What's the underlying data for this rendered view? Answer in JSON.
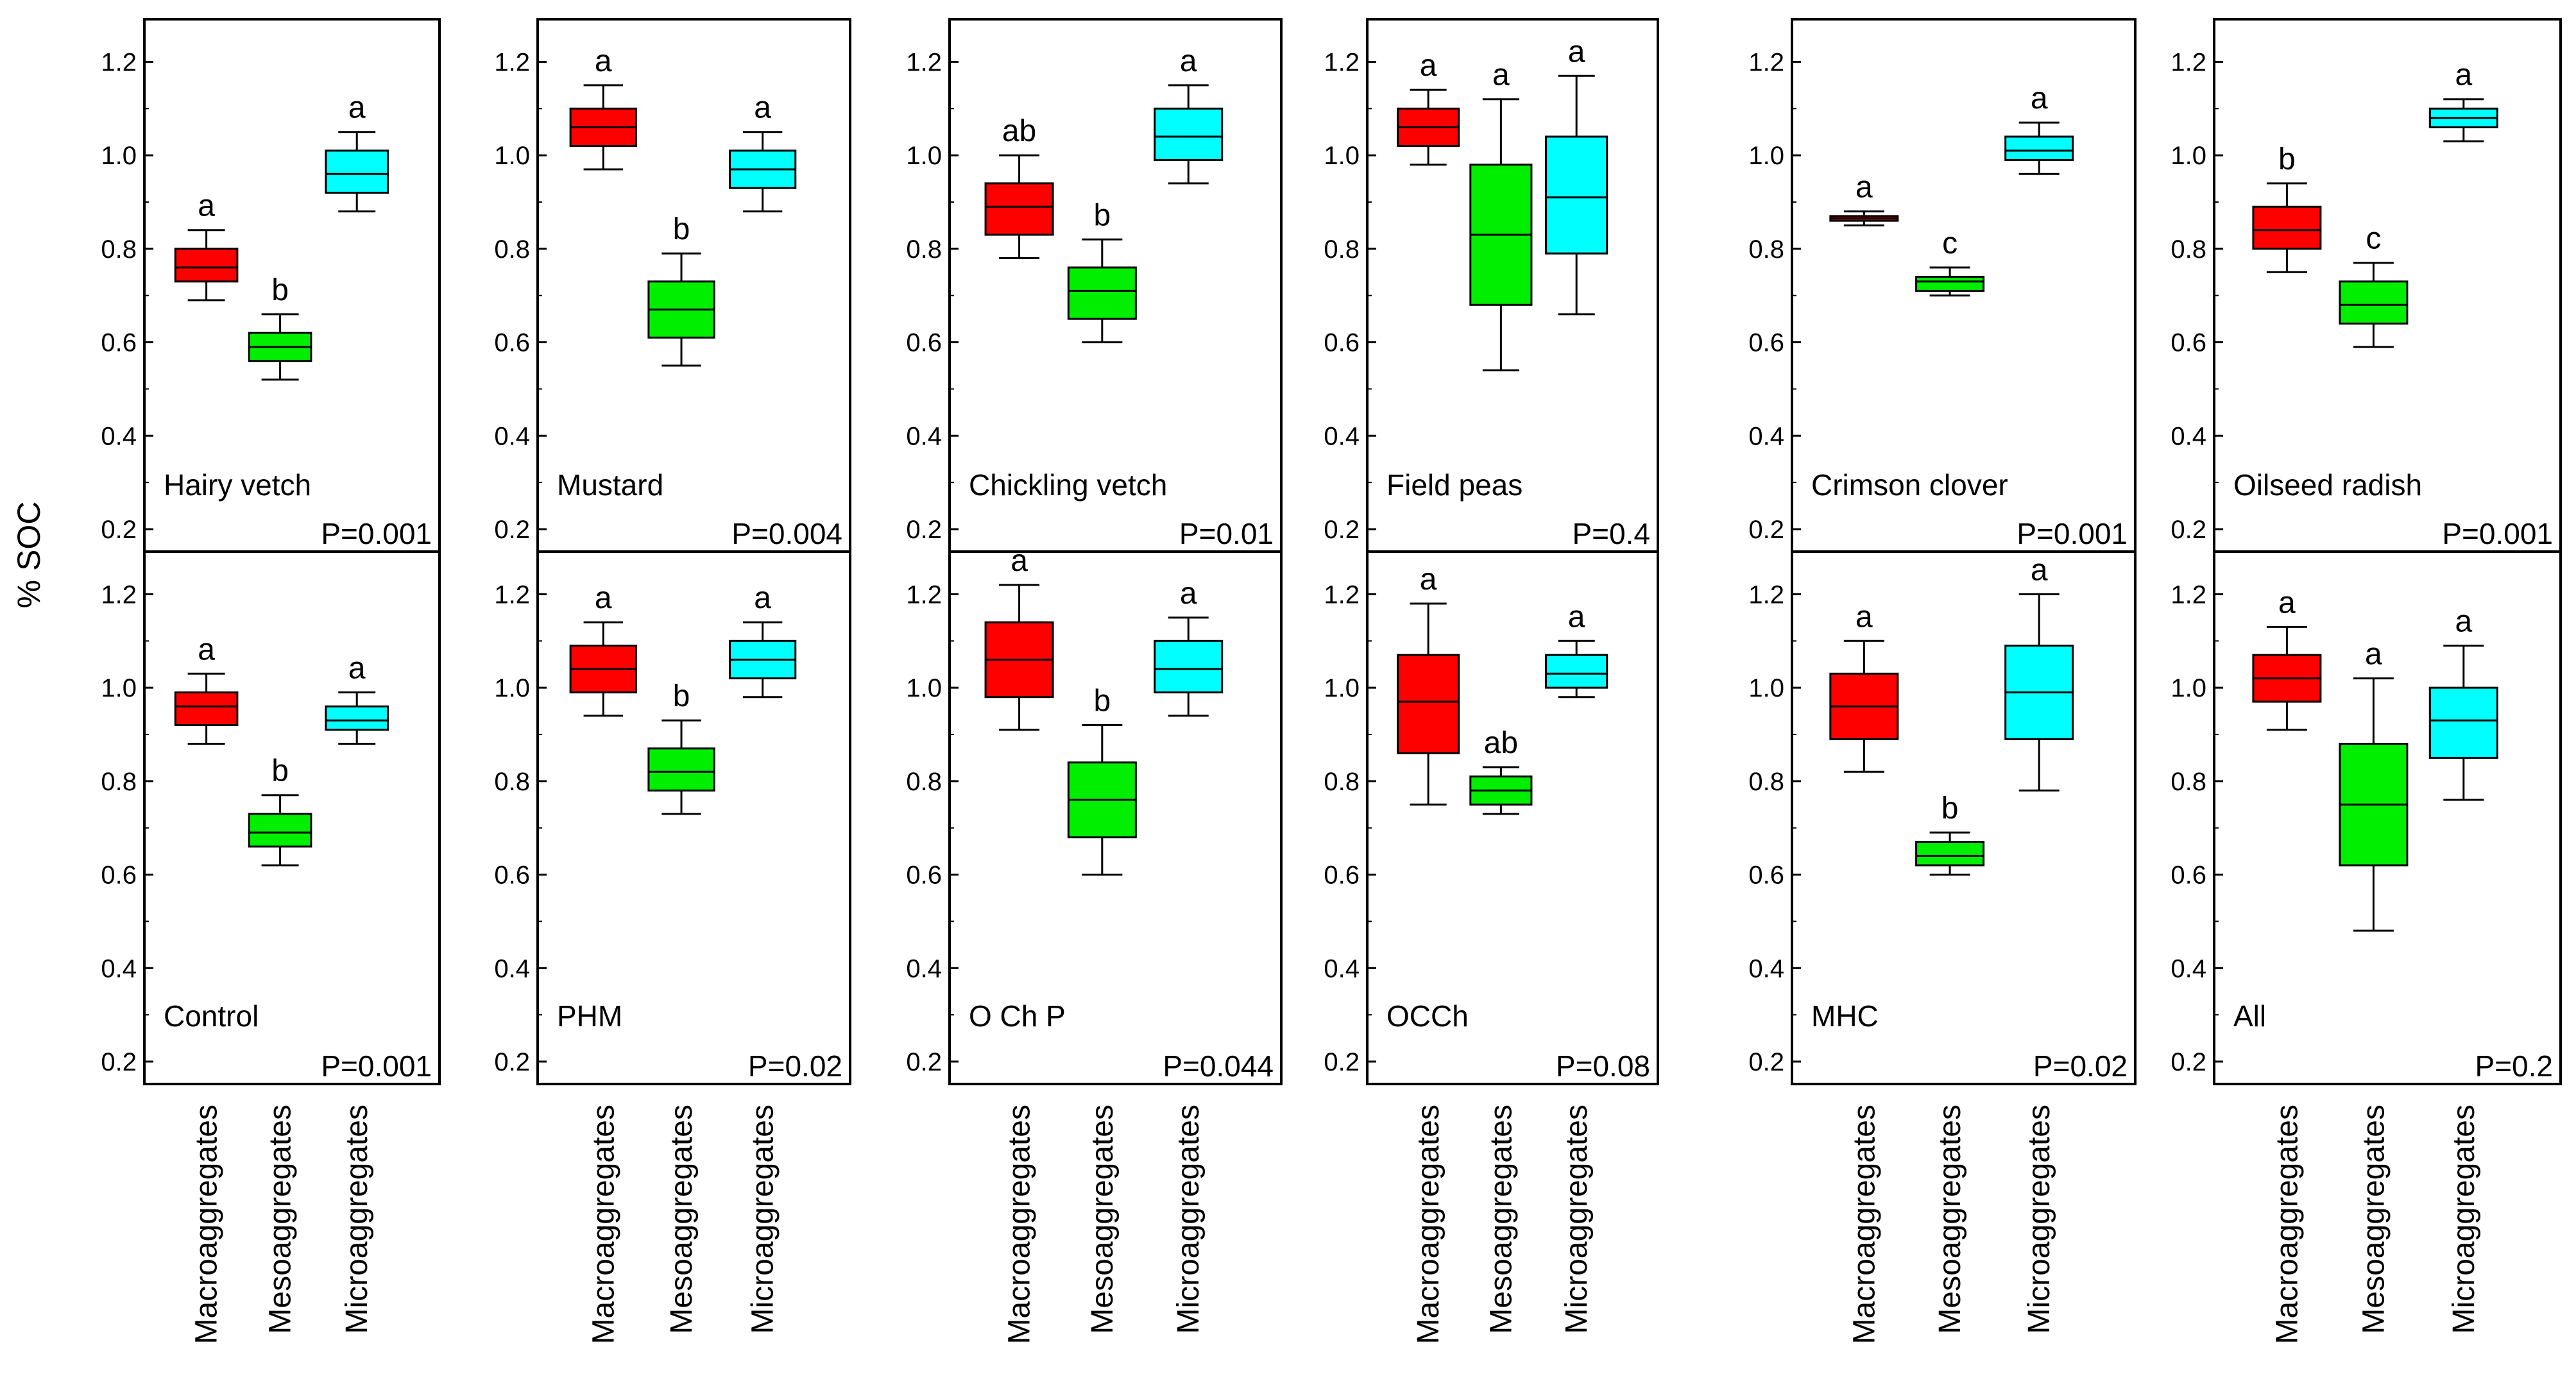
{
  "chart_data": {
    "type": "box",
    "ylabel": "% SOC",
    "ylim": [
      0.2,
      1.25
    ],
    "yticks": [
      0.2,
      0.4,
      0.6,
      0.8,
      1.0,
      1.2
    ],
    "ytick_labels": [
      "0.2",
      "0.4",
      "0.6",
      "0.8",
      "1.0",
      "1.2"
    ],
    "categories": [
      "Macroaggregates",
      "Mesoaggregates",
      "Microaggregates"
    ],
    "series_colors": [
      "#ff0000",
      "#00ee00",
      "#00ffff"
    ],
    "panels": [
      {
        "label": "Hairy vetch",
        "p_value": "P=0.001",
        "letters": [
          "a",
          "b",
          "a"
        ],
        "boxes": [
          {
            "min": 0.69,
            "q1": 0.73,
            "median": 0.76,
            "q3": 0.8,
            "max": 0.84
          },
          {
            "min": 0.52,
            "q1": 0.56,
            "median": 0.59,
            "q3": 0.62,
            "max": 0.66
          },
          {
            "min": 0.88,
            "q1": 0.92,
            "median": 0.96,
            "q3": 1.01,
            "max": 1.05
          }
        ]
      },
      {
        "label": "Mustard",
        "p_value": "P=0.004",
        "letters": [
          "a",
          "b",
          "a"
        ],
        "boxes": [
          {
            "min": 0.97,
            "q1": 1.02,
            "median": 1.06,
            "q3": 1.1,
            "max": 1.15
          },
          {
            "min": 0.55,
            "q1": 0.61,
            "median": 0.67,
            "q3": 0.73,
            "max": 0.79
          },
          {
            "min": 0.88,
            "q1": 0.93,
            "median": 0.97,
            "q3": 1.01,
            "max": 1.05
          }
        ]
      },
      {
        "label": "Chickling vetch",
        "p_value": "P=0.01",
        "letters": [
          "ab",
          "b",
          "a"
        ],
        "boxes": [
          {
            "min": 0.78,
            "q1": 0.83,
            "median": 0.89,
            "q3": 0.94,
            "max": 1.0
          },
          {
            "min": 0.6,
            "q1": 0.65,
            "median": 0.71,
            "q3": 0.76,
            "max": 0.82
          },
          {
            "min": 0.94,
            "q1": 0.99,
            "median": 1.04,
            "q3": 1.1,
            "max": 1.15
          }
        ]
      },
      {
        "label": "Field peas",
        "p_value": "P=0.4",
        "letters": [
          "a",
          "a",
          "a"
        ],
        "boxes": [
          {
            "min": 0.98,
            "q1": 1.02,
            "median": 1.06,
            "q3": 1.1,
            "max": 1.14
          },
          {
            "min": 0.54,
            "q1": 0.68,
            "median": 0.83,
            "q3": 0.98,
            "max": 1.12
          },
          {
            "min": 0.66,
            "q1": 0.79,
            "median": 0.91,
            "q3": 1.04,
            "max": 1.17
          }
        ]
      },
      {
        "label": "Crimson clover",
        "p_value": "P=0.001",
        "letters": [
          "a",
          "c",
          "a"
        ],
        "boxes": [
          {
            "min": 0.85,
            "q1": 0.86,
            "median": 0.865,
            "q3": 0.87,
            "max": 0.88
          },
          {
            "min": 0.7,
            "q1": 0.71,
            "median": 0.73,
            "q3": 0.74,
            "max": 0.76
          },
          {
            "min": 0.96,
            "q1": 0.99,
            "median": 1.01,
            "q3": 1.04,
            "max": 1.07
          }
        ]
      },
      {
        "label": "Oilseed radish",
        "p_value": "P=0.001",
        "letters": [
          "b",
          "c",
          "a"
        ],
        "boxes": [
          {
            "min": 0.75,
            "q1": 0.8,
            "median": 0.84,
            "q3": 0.89,
            "max": 0.94
          },
          {
            "min": 0.59,
            "q1": 0.64,
            "median": 0.68,
            "q3": 0.73,
            "max": 0.77
          },
          {
            "min": 1.03,
            "q1": 1.06,
            "median": 1.08,
            "q3": 1.1,
            "max": 1.12
          }
        ]
      },
      {
        "label": "Control",
        "p_value": "P=0.001",
        "letters": [
          "a",
          "b",
          "a"
        ],
        "boxes": [
          {
            "min": 0.88,
            "q1": 0.92,
            "median": 0.96,
            "q3": 0.99,
            "max": 1.03
          },
          {
            "min": 0.62,
            "q1": 0.66,
            "median": 0.69,
            "q3": 0.73,
            "max": 0.77
          },
          {
            "min": 0.88,
            "q1": 0.91,
            "median": 0.93,
            "q3": 0.96,
            "max": 0.99
          }
        ]
      },
      {
        "label": "PHM",
        "p_value": "P=0.02",
        "letters": [
          "a",
          "b",
          "a"
        ],
        "boxes": [
          {
            "min": 0.94,
            "q1": 0.99,
            "median": 1.04,
            "q3": 1.09,
            "max": 1.14
          },
          {
            "min": 0.73,
            "q1": 0.78,
            "median": 0.82,
            "q3": 0.87,
            "max": 0.93
          },
          {
            "min": 0.98,
            "q1": 1.02,
            "median": 1.06,
            "q3": 1.1,
            "max": 1.14
          }
        ]
      },
      {
        "label": "O Ch P",
        "p_value": "P=0.044",
        "letters": [
          "a",
          "b",
          "a"
        ],
        "boxes": [
          {
            "min": 0.91,
            "q1": 0.98,
            "median": 1.06,
            "q3": 1.14,
            "max": 1.22
          },
          {
            "min": 0.6,
            "q1": 0.68,
            "median": 0.76,
            "q3": 0.84,
            "max": 0.92
          },
          {
            "min": 0.94,
            "q1": 0.99,
            "median": 1.04,
            "q3": 1.1,
            "max": 1.15
          }
        ]
      },
      {
        "label": "OCCh",
        "p_value": "P=0.08",
        "letters": [
          "a",
          "ab",
          "a"
        ],
        "boxes": [
          {
            "min": 0.75,
            "q1": 0.86,
            "median": 0.97,
            "q3": 1.07,
            "max": 1.18
          },
          {
            "min": 0.73,
            "q1": 0.75,
            "median": 0.78,
            "q3": 0.81,
            "max": 0.83
          },
          {
            "min": 0.98,
            "q1": 1.0,
            "median": 1.03,
            "q3": 1.07,
            "max": 1.1
          }
        ]
      },
      {
        "label": "MHC",
        "p_value": "P=0.02",
        "letters": [
          "a",
          "b",
          "a"
        ],
        "boxes": [
          {
            "min": 0.82,
            "q1": 0.89,
            "median": 0.96,
            "q3": 1.03,
            "max": 1.1
          },
          {
            "min": 0.6,
            "q1": 0.62,
            "median": 0.64,
            "q3": 0.67,
            "max": 0.69
          },
          {
            "min": 0.78,
            "q1": 0.89,
            "median": 0.99,
            "q3": 1.09,
            "max": 1.2
          }
        ]
      },
      {
        "label": "All",
        "p_value": "P=0.2",
        "letters": [
          "a",
          "a",
          "a"
        ],
        "boxes": [
          {
            "min": 0.91,
            "q1": 0.97,
            "median": 1.02,
            "q3": 1.07,
            "max": 1.13
          },
          {
            "min": 0.48,
            "q1": 0.62,
            "median": 0.75,
            "q3": 0.88,
            "max": 1.02
          },
          {
            "min": 0.76,
            "q1": 0.85,
            "median": 0.93,
            "q3": 1.0,
            "max": 1.09
          }
        ]
      }
    ]
  }
}
